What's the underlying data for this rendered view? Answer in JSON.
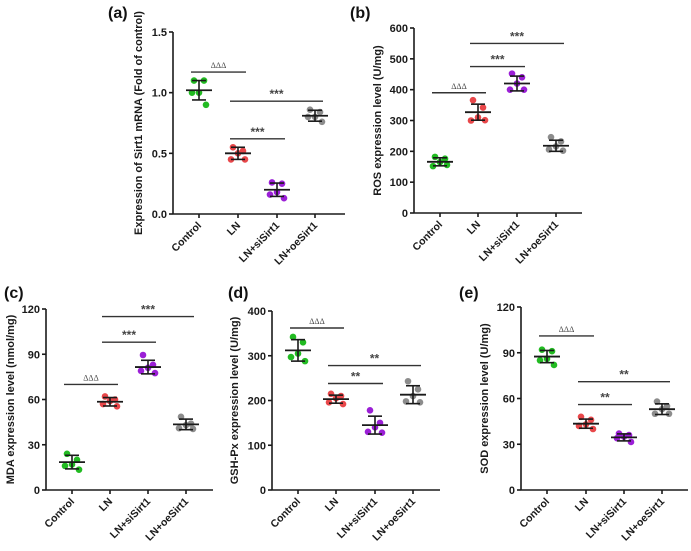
{
  "chart_data": [
    {
      "id": "a",
      "type": "scatter",
      "panel_label": "(a)",
      "title": "",
      "xlabel": "",
      "ylabel": "Expression of Sirt1 mRNA (Fold of control)",
      "categories": [
        "Control",
        "LN",
        "LN+siSirt1",
        "LN+oeSirt1"
      ],
      "ylim": [
        0,
        1.5
      ],
      "yticks": [
        0.0,
        0.5,
        1.0,
        1.5
      ],
      "ytick_labels": [
        "0.0",
        "0.5",
        "1.0",
        "1.5"
      ],
      "series": [
        {
          "name": "Control",
          "color": "#22bb22",
          "mean": 1.02,
          "sd": 0.08,
          "points": [
            1.1,
            1.1,
            1.0,
            1.0,
            0.9
          ]
        },
        {
          "name": "LN",
          "color": "#e8474a",
          "mean": 0.5,
          "sd": 0.05,
          "points": [
            0.55,
            0.52,
            0.5,
            0.45,
            0.45
          ]
        },
        {
          "name": "LN+siSirt1",
          "color": "#9b1fd6",
          "mean": 0.2,
          "sd": 0.055,
          "points": [
            0.26,
            0.25,
            0.18,
            0.16,
            0.13
          ]
        },
        {
          "name": "LN+oeSirt1",
          "color": "#8c8c8c",
          "mean": 0.81,
          "sd": 0.045,
          "points": [
            0.86,
            0.84,
            0.8,
            0.8,
            0.76
          ]
        }
      ],
      "significance": [
        {
          "from": 0,
          "to": 1,
          "level": 1.17,
          "label": "ΔΔΔ",
          "kind": "triangle"
        },
        {
          "from": 1,
          "to": 3,
          "level": 0.93,
          "label": "***",
          "kind": "star"
        },
        {
          "from": 1,
          "to": 2,
          "level": 0.62,
          "label": "***",
          "kind": "star"
        }
      ]
    },
    {
      "id": "b",
      "type": "scatter",
      "panel_label": "(b)",
      "title": "",
      "xlabel": "",
      "ylabel": "ROS expression level (U/mg)",
      "categories": [
        "Control",
        "LN",
        "LN+siSirt1",
        "LN+oeSirt1"
      ],
      "ylim": [
        0,
        600
      ],
      "yticks": [
        0,
        100,
        200,
        300,
        400,
        500,
        600
      ],
      "ytick_labels": [
        "0",
        "100",
        "200",
        "300",
        "400",
        "500",
        "600"
      ],
      "series": [
        {
          "name": "Control",
          "color": "#22bb22",
          "mean": 166,
          "sd": 13,
          "points": [
            182,
            176,
            165,
            152,
            156
          ]
        },
        {
          "name": "LN",
          "color": "#e8474a",
          "mean": 327,
          "sd": 26,
          "points": [
            366,
            342,
            310,
            300,
            301
          ]
        },
        {
          "name": "LN+siSirt1",
          "color": "#9b1fd6",
          "mean": 420,
          "sd": 24,
          "points": [
            452,
            440,
            420,
            400,
            400
          ]
        },
        {
          "name": "LN+oeSirt1",
          "color": "#8c8c8c",
          "mean": 218,
          "sd": 18,
          "points": [
            246,
            232,
            216,
            206,
            202
          ]
        }
      ],
      "significance": [
        {
          "from": 0,
          "to": 1,
          "level": 390,
          "label": "ΔΔΔ",
          "kind": "triangle"
        },
        {
          "from": 1,
          "to": 2,
          "level": 475,
          "label": "***",
          "kind": "star"
        },
        {
          "from": 1,
          "to": 3,
          "level": 550,
          "label": "***",
          "kind": "star"
        }
      ]
    },
    {
      "id": "c",
      "type": "scatter",
      "panel_label": "(c)",
      "title": "",
      "xlabel": "",
      "ylabel": "MDA expression level (nmol/mg)",
      "categories": [
        "Control",
        "LN",
        "LN+siSirt1",
        "LN+oeSirt1"
      ],
      "ylim": [
        0,
        120
      ],
      "yticks": [
        0,
        30,
        60,
        90,
        120
      ],
      "ytick_labels": [
        "0",
        "30",
        "60",
        "90",
        "120"
      ],
      "series": [
        {
          "name": "Control",
          "color": "#22bb22",
          "mean": 18.5,
          "sd": 4.5,
          "points": [
            24,
            20,
            17,
            16,
            13.5
          ]
        },
        {
          "name": "LN",
          "color": "#e8474a",
          "mean": 58.5,
          "sd": 2.8,
          "points": [
            62,
            60,
            59,
            57,
            55.5
          ]
        },
        {
          "name": "LN+siSirt1",
          "color": "#9b1fd6",
          "mean": 81.5,
          "sd": 4.5,
          "points": [
            89.5,
            83,
            81,
            79,
            77.5
          ]
        },
        {
          "name": "LN+oeSirt1",
          "color": "#8c8c8c",
          "mean": 43.5,
          "sd": 3.5,
          "points": [
            48.5,
            44,
            43,
            41,
            40.5
          ]
        }
      ],
      "significance": [
        {
          "from": 0,
          "to": 1,
          "level": 70,
          "label": "ΔΔΔ",
          "kind": "triangle"
        },
        {
          "from": 1,
          "to": 2,
          "level": 98,
          "label": "***",
          "kind": "star"
        },
        {
          "from": 1,
          "to": 3,
          "level": 115,
          "label": "***",
          "kind": "star"
        }
      ]
    },
    {
      "id": "d",
      "type": "scatter",
      "panel_label": "(d)",
      "title": "",
      "xlabel": "",
      "ylabel": "GSH-Px expression level (U/mg)",
      "categories": [
        "Control",
        "LN",
        "LN+siSirt1",
        "LN+oeSirt1"
      ],
      "ylim": [
        0,
        400
      ],
      "yticks": [
        0,
        100,
        200,
        300,
        400
      ],
      "ytick_labels": [
        "0",
        "100",
        "200",
        "300",
        "400"
      ],
      "series": [
        {
          "name": "Control",
          "color": "#22bb22",
          "mean": 312,
          "sd": 24,
          "points": [
            342,
            330,
            305,
            297,
            288
          ]
        },
        {
          "name": "LN",
          "color": "#e8474a",
          "mean": 203,
          "sd": 9,
          "points": [
            215,
            210,
            205,
            196,
            192
          ]
        },
        {
          "name": "LN+siSirt1",
          "color": "#9b1fd6",
          "mean": 145,
          "sd": 20,
          "points": [
            178,
            150,
            140,
            130,
            128
          ]
        },
        {
          "name": "LN+oeSirt1",
          "color": "#8c8c8c",
          "mean": 213,
          "sd": 20,
          "points": [
            243,
            225,
            210,
            198,
            196
          ]
        }
      ],
      "significance": [
        {
          "from": 0,
          "to": 1,
          "level": 362,
          "label": "ΔΔΔ",
          "kind": "triangle"
        },
        {
          "from": 1,
          "to": 2,
          "level": 238,
          "label": "**",
          "kind": "star"
        },
        {
          "from": 1,
          "to": 3,
          "level": 278,
          "label": "**",
          "kind": "star"
        }
      ]
    },
    {
      "id": "e",
      "type": "scatter",
      "panel_label": "(e)",
      "title": "",
      "xlabel": "",
      "ylabel": "SOD expression level (U/mg)",
      "categories": [
        "Control",
        "LN",
        "LN+siSirt1",
        "LN+oeSirt1"
      ],
      "ylim": [
        0,
        120
      ],
      "yticks": [
        0,
        30,
        60,
        90,
        120
      ],
      "ytick_labels": [
        "0",
        "30",
        "60",
        "90",
        "120"
      ],
      "series": [
        {
          "name": "Control",
          "color": "#22bb22",
          "mean": 87.5,
          "sd": 4,
          "points": [
            92,
            91,
            86,
            85,
            82
          ]
        },
        {
          "name": "LN",
          "color": "#e8474a",
          "mean": 43.5,
          "sd": 3,
          "points": [
            48,
            46,
            43,
            42,
            40
          ]
        },
        {
          "name": "LN+siSirt1",
          "color": "#9b1fd6",
          "mean": 34.5,
          "sd": 2.3,
          "points": [
            37,
            36,
            35,
            34,
            31.5
          ]
        },
        {
          "name": "LN+oeSirt1",
          "color": "#8c8c8c",
          "mean": 53,
          "sd": 3.5,
          "points": [
            58,
            55,
            53,
            50,
            50
          ]
        }
      ],
      "significance": [
        {
          "from": 0,
          "to": 1,
          "level": 101,
          "label": "ΔΔΔ",
          "kind": "triangle"
        },
        {
          "from": 1,
          "to": 2,
          "level": 56,
          "label": "**",
          "kind": "star"
        },
        {
          "from": 1,
          "to": 3,
          "level": 71,
          "label": "**",
          "kind": "star"
        }
      ]
    }
  ]
}
